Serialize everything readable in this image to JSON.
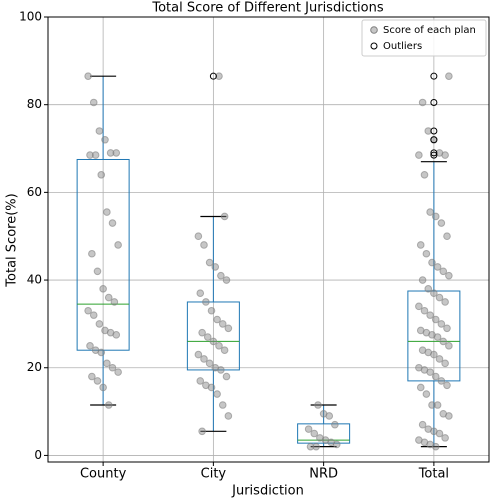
{
  "chart_data": {
    "type": "box",
    "title": "Total Score of Different Jurisdictions",
    "xlabel": "Jurisdiction",
    "ylabel": "Total Score(%)",
    "categories": [
      "County",
      "City",
      "NRD",
      "Total"
    ],
    "ylim": [
      -1.5,
      100
    ],
    "yticks": [
      0,
      20,
      40,
      60,
      80,
      100
    ],
    "grid": true,
    "legend": "upper right",
    "box_color": "#1f77b4",
    "median_color": "#2ca02c",
    "boxes": [
      {
        "whislo": 11.5,
        "q1": 24,
        "med": 34.5,
        "q3": 67.5,
        "whishi": 86.5,
        "fliers": []
      },
      {
        "whislo": 5.5,
        "q1": 19.5,
        "med": 26,
        "q3": 35,
        "whishi": 54.5,
        "fliers": [
          86.5
        ]
      },
      {
        "whislo": 2,
        "q1": 2.8,
        "med": 3.5,
        "q3": 7.2,
        "whishi": 11.5,
        "fliers": []
      },
      {
        "whislo": 2,
        "q1": 17,
        "med": 26,
        "q3": 37.5,
        "whishi": 67,
        "fliers": [
          68.5,
          69,
          72,
          74,
          80.5,
          86.5
        ]
      }
    ],
    "scatter": {
      "name": "Score of each plan",
      "color": "#808080",
      "values": [
        [
          86.5,
          80.5,
          74,
          72,
          69,
          69,
          68.5,
          68.5,
          64,
          55.5,
          53,
          48,
          46,
          42,
          38,
          36,
          35,
          33,
          32,
          30,
          28.5,
          28,
          27.5,
          25,
          24,
          23.5,
          21,
          20,
          19,
          18,
          17,
          15.5,
          11.5
        ],
        [
          86.5,
          54.5,
          50,
          48,
          44,
          43,
          41,
          40,
          37,
          35,
          33,
          31,
          30,
          29,
          28,
          27,
          26,
          25,
          24,
          23,
          22,
          21,
          20,
          19.5,
          18,
          17,
          16,
          15.5,
          14,
          11.5,
          9,
          5.5
        ],
        [
          11.5,
          9.5,
          9,
          7,
          6,
          5,
          4,
          3.5,
          3,
          2.5,
          2,
          2
        ],
        [
          86.5,
          80.5,
          74,
          72,
          69,
          68.5,
          68.5,
          64,
          55.5,
          54.5,
          53,
          50,
          48,
          46,
          44,
          43,
          42,
          41,
          40,
          38,
          37,
          36,
          35,
          34,
          33,
          32,
          31,
          30,
          29,
          28.5,
          28,
          27.5,
          27,
          26,
          25,
          24,
          23.5,
          23,
          22,
          21,
          20,
          19.5,
          19,
          18,
          17,
          16,
          15.5,
          14,
          11.5,
          11.5,
          9.5,
          9,
          7,
          6,
          5.5,
          5,
          4,
          3.5,
          3,
          2.5,
          2
        ]
      ]
    },
    "fliers_name": "Outliers"
  }
}
